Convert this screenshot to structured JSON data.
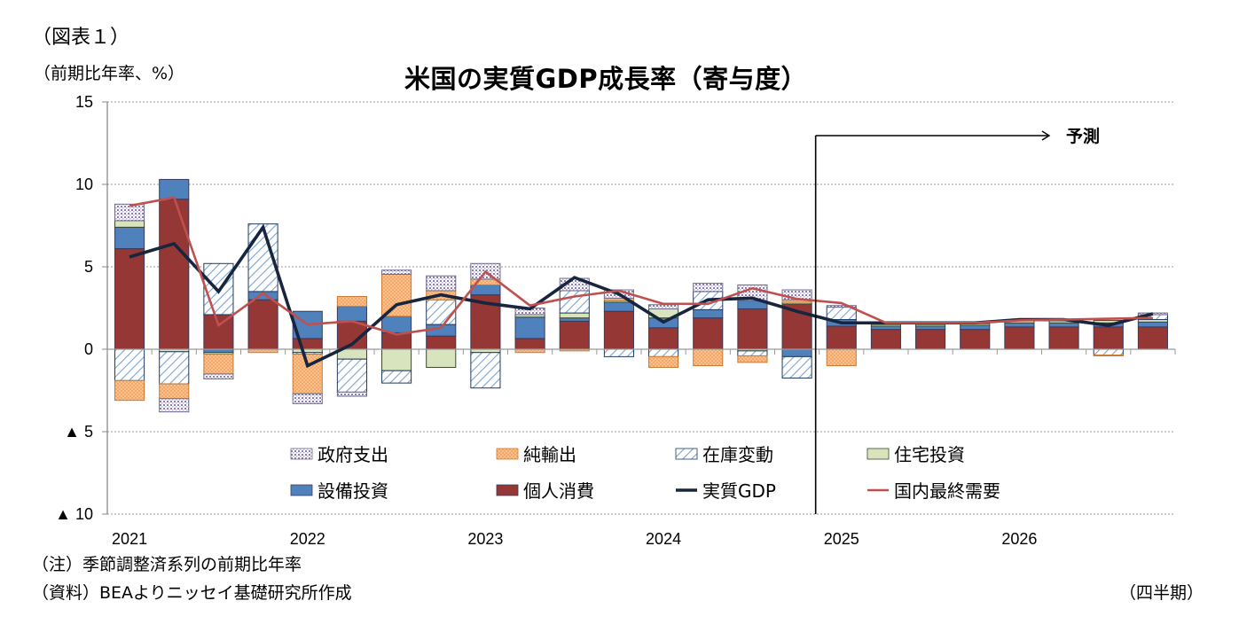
{
  "header": {
    "figure_label": "（図表１）",
    "unit_label": "（前期比年率、%）"
  },
  "footer": {
    "note": "（注）季節調整済系列の前期比年率",
    "source": "（資料）BEAよりニッセイ基礎研究所作成",
    "x_unit": "（四半期）"
  },
  "chart_data": {
    "type": "bar",
    "stacked": true,
    "title": "米国の実質GDP成長率（寄与度）",
    "ylabel": "（前期比年率、%）",
    "xlabel": "（四半期）",
    "ylim": [
      -10,
      15
    ],
    "yticks": [
      15,
      10,
      5,
      0,
      -5,
      -10
    ],
    "ytick_labels": [
      "15",
      "10",
      "5",
      "0",
      "▲ 5",
      "▲ 10"
    ],
    "grid": true,
    "legend_position": "bottom-inside",
    "forecast_annotation": {
      "label": "予測",
      "starts_at_category": "2025Q1"
    },
    "year_labels": [
      "2021",
      "2022",
      "2023",
      "2024",
      "2025",
      "2026"
    ],
    "categories": [
      "2021Q1",
      "2021Q2",
      "2021Q3",
      "2021Q4",
      "2022Q1",
      "2022Q2",
      "2022Q3",
      "2022Q4",
      "2023Q1",
      "2023Q2",
      "2023Q3",
      "2023Q4",
      "2024Q1",
      "2024Q2",
      "2024Q3",
      "2024Q4",
      "2025Q1",
      "2025Q2",
      "2025Q3",
      "2025Q4",
      "2026Q1",
      "2026Q2",
      "2026Q3",
      "2026Q4"
    ],
    "series": [
      {
        "name": "個人消費",
        "kind": "bar",
        "color": "#953735",
        "pattern": "solid",
        "values": [
          6.1,
          9.1,
          2.1,
          3.0,
          0.65,
          1.7,
          1.0,
          0.8,
          3.3,
          0.65,
          1.7,
          2.3,
          1.3,
          1.9,
          2.45,
          2.75,
          1.4,
          1.2,
          1.2,
          1.2,
          1.35,
          1.35,
          1.35,
          1.35
        ]
      },
      {
        "name": "設備投資",
        "kind": "bar",
        "color": "#4f81bd",
        "pattern": "solid",
        "values": [
          1.3,
          1.2,
          -0.2,
          0.5,
          1.65,
          0.9,
          1.0,
          0.7,
          0.6,
          1.3,
          0.2,
          0.55,
          0.6,
          0.5,
          0.5,
          -0.45,
          0.4,
          0.2,
          0.2,
          0.25,
          0.25,
          0.25,
          0.25,
          0.3
        ]
      },
      {
        "name": "住宅投資",
        "kind": "bar",
        "color": "#d7e4bd",
        "pattern": "solid",
        "values": [
          0.4,
          -0.15,
          -0.1,
          0.0,
          -0.2,
          -0.6,
          -1.3,
          -1.1,
          -0.2,
          0.15,
          0.3,
          0.1,
          0.55,
          0.0,
          -0.1,
          0.1,
          0.0,
          0.1,
          0.1,
          0.1,
          0.15,
          0.15,
          0.15,
          0.15
        ]
      },
      {
        "name": "在庫変動",
        "kind": "bar",
        "color": "#b9cde5",
        "pattern": "hatch",
        "values": [
          -1.9,
          -1.95,
          3.1,
          4.1,
          -0.1,
          -2.0,
          -0.75,
          1.5,
          -2.15,
          0.0,
          1.35,
          -0.45,
          -0.45,
          1.1,
          -0.3,
          -1.3,
          0.75,
          0.0,
          0.0,
          0.0,
          0.0,
          0.0,
          -0.35,
          0.3
        ]
      },
      {
        "name": "純輸出",
        "kind": "bar",
        "color": "#fac090",
        "pattern": "dots",
        "values": [
          -1.2,
          -0.9,
          -1.2,
          -0.2,
          -2.4,
          0.6,
          2.55,
          0.55,
          0.35,
          -0.2,
          -0.1,
          0.15,
          -0.65,
          -1.0,
          -0.4,
          0.15,
          -1.0,
          0.0,
          0.0,
          0.0,
          0.0,
          0.0,
          -0.05,
          0.0
        ]
      },
      {
        "name": "政府支出",
        "kind": "bar",
        "color": "#ccc0da",
        "pattern": "fine-dots",
        "values": [
          1.0,
          -0.8,
          -0.3,
          0.0,
          -0.6,
          -0.25,
          0.25,
          0.9,
          0.95,
          0.4,
          0.75,
          0.5,
          0.25,
          0.5,
          0.95,
          0.6,
          0.1,
          0.0,
          0.0,
          0.0,
          0.0,
          0.0,
          0.0,
          0.1
        ]
      },
      {
        "name": "実質GDP",
        "kind": "line",
        "color": "#17253f",
        "values": [
          5.6,
          6.4,
          3.5,
          7.4,
          -1.0,
          0.3,
          2.7,
          3.3,
          2.8,
          2.45,
          4.35,
          3.35,
          1.65,
          3.0,
          3.1,
          2.3,
          1.6,
          1.6,
          1.6,
          1.6,
          1.8,
          1.8,
          1.45,
          2.15
        ]
      },
      {
        "name": "国内最終需要",
        "kind": "line",
        "color": "#c0504d",
        "values": [
          8.7,
          9.2,
          1.45,
          3.4,
          1.5,
          1.7,
          0.9,
          1.3,
          4.7,
          2.65,
          3.2,
          3.55,
          2.75,
          2.75,
          3.7,
          3.05,
          2.8,
          1.6,
          1.6,
          1.6,
          1.75,
          1.8,
          1.85,
          1.9
        ]
      }
    ],
    "legend": [
      {
        "name": "政府支出",
        "swatch": "fine-dots",
        "color": "#ccc0da"
      },
      {
        "name": "純輸出",
        "swatch": "dots",
        "color": "#fac090"
      },
      {
        "name": "在庫変動",
        "swatch": "hatch",
        "color": "#b9cde5"
      },
      {
        "name": "住宅投資",
        "swatch": "solid",
        "color": "#d7e4bd"
      },
      {
        "name": "設備投資",
        "swatch": "solid",
        "color": "#4f81bd"
      },
      {
        "name": "個人消費",
        "swatch": "solid",
        "color": "#953735"
      },
      {
        "name": "実質GDP",
        "swatch": "line",
        "color": "#17253f"
      },
      {
        "name": "国内最終需要",
        "swatch": "line",
        "color": "#c0504d"
      }
    ]
  }
}
